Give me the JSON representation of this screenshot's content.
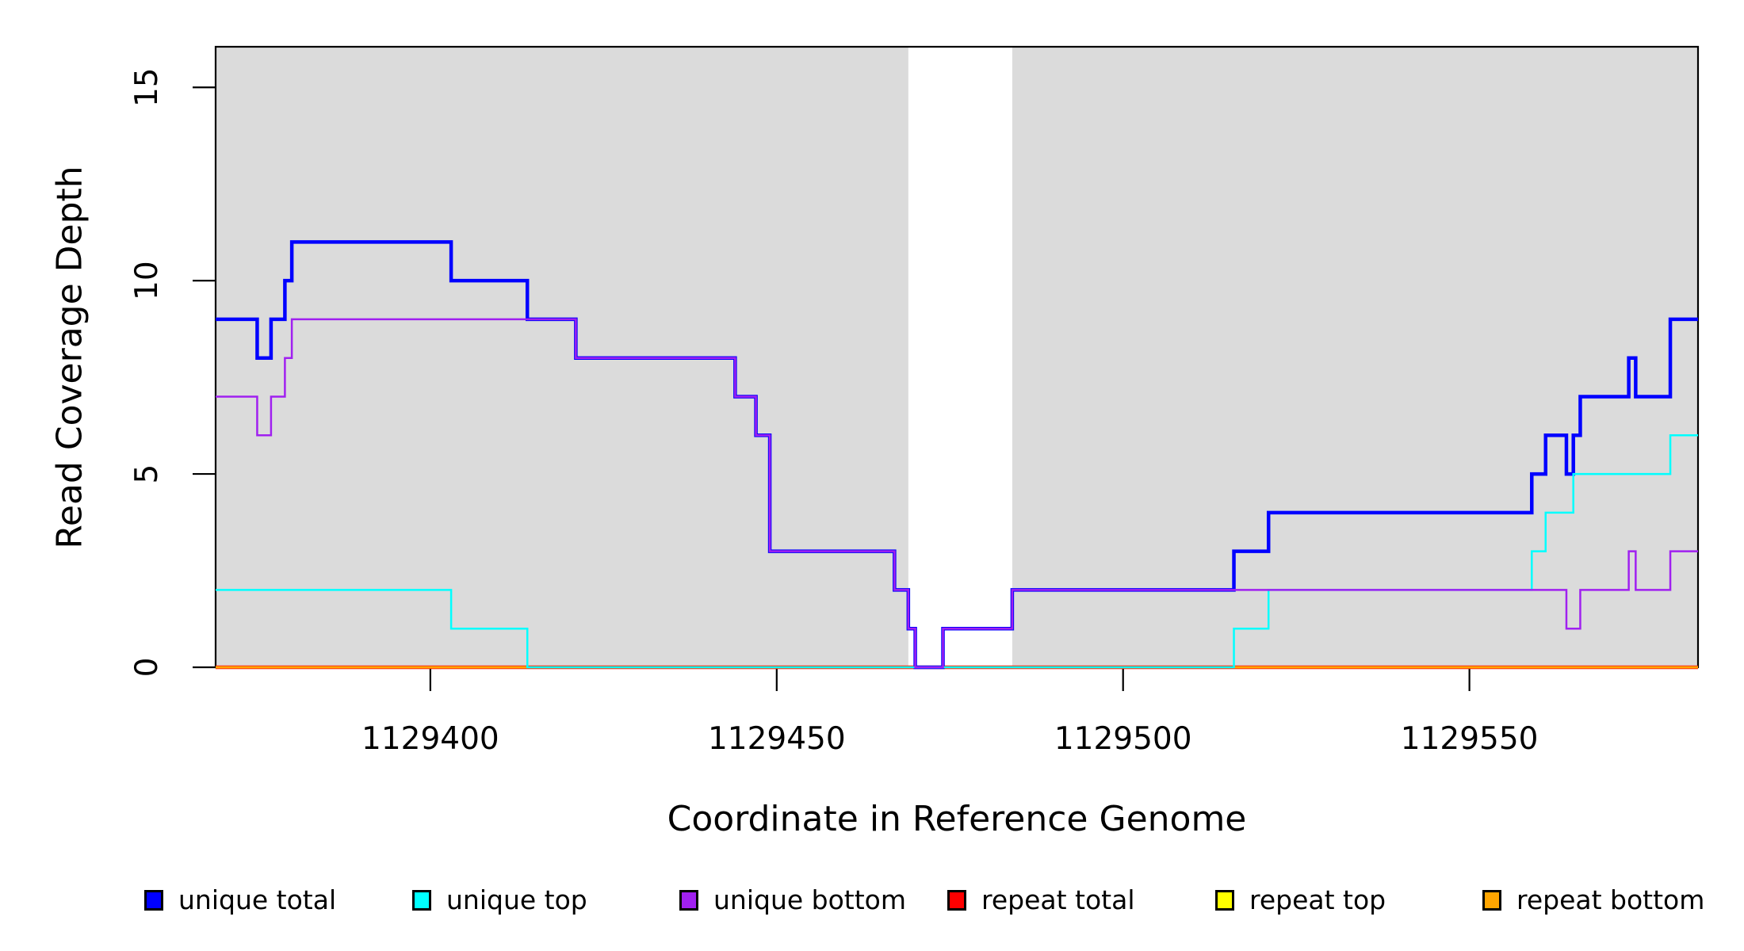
{
  "figure": {
    "background": "#ffffff",
    "panel_background": "#dbdbdb",
    "axis_color": "#000000"
  },
  "chart_data": {
    "type": "line",
    "subtype": "step-hv",
    "title": "",
    "xlabel": "Coordinate in Reference Genome",
    "ylabel": "Read Coverage Depth",
    "xlim": [
      1129369,
      1129583
    ],
    "ylim": [
      0,
      16.05
    ],
    "x_ticks": [
      1129400,
      1129450,
      1129500,
      1129550
    ],
    "y_ticks": [
      0,
      5,
      10,
      15
    ],
    "grid": false,
    "legend_position": "bottom",
    "masked_white_band": {
      "x1": 1129469,
      "x2": 1129484
    },
    "series": [
      {
        "name": "repeat total",
        "color": "#ff0000",
        "width": 4.5,
        "points": [
          [
            1129369,
            0
          ],
          [
            1129583,
            0
          ]
        ]
      },
      {
        "name": "repeat top",
        "color": "#ffff00",
        "width": 2.5,
        "points": [
          [
            1129369,
            0
          ],
          [
            1129583,
            0
          ]
        ]
      },
      {
        "name": "repeat bottom",
        "color": "#ffa500",
        "width": 3,
        "points": [
          [
            1129369,
            0
          ],
          [
            1129583,
            0
          ]
        ]
      },
      {
        "name": "unique total",
        "color": "#0000ff",
        "width": 4.5,
        "points": [
          [
            1129369,
            9
          ],
          [
            1129375,
            8
          ],
          [
            1129377,
            9
          ],
          [
            1129379,
            10
          ],
          [
            1129380,
            11
          ],
          [
            1129403,
            10
          ],
          [
            1129414,
            9
          ],
          [
            1129421,
            8
          ],
          [
            1129444,
            7
          ],
          [
            1129447,
            6
          ],
          [
            1129449,
            3
          ],
          [
            1129467,
            2
          ],
          [
            1129469,
            1
          ],
          [
            1129470,
            0
          ],
          [
            1129474,
            1
          ],
          [
            1129484,
            2
          ],
          [
            1129516,
            3
          ],
          [
            1129521,
            4
          ],
          [
            1129559,
            5
          ],
          [
            1129561,
            6
          ],
          [
            1129564,
            5
          ],
          [
            1129565,
            6
          ],
          [
            1129566,
            7
          ],
          [
            1129573,
            8
          ],
          [
            1129574,
            7
          ],
          [
            1129579,
            9
          ],
          [
            1129583,
            9
          ]
        ]
      },
      {
        "name": "unique top",
        "color": "#00ffff",
        "width": 2.5,
        "points": [
          [
            1129369,
            2
          ],
          [
            1129403,
            1
          ],
          [
            1129414,
            0
          ],
          [
            1129516,
            1
          ],
          [
            1129521,
            2
          ],
          [
            1129559,
            3
          ],
          [
            1129561,
            4
          ],
          [
            1129565,
            5
          ],
          [
            1129579,
            6
          ],
          [
            1129583,
            6
          ]
        ]
      },
      {
        "name": "unique bottom",
        "color": "#a020f0",
        "width": 2.5,
        "points": [
          [
            1129369,
            7
          ],
          [
            1129375,
            6
          ],
          [
            1129377,
            7
          ],
          [
            1129379,
            8
          ],
          [
            1129380,
            9
          ],
          [
            1129421,
            8
          ],
          [
            1129444,
            7
          ],
          [
            1129447,
            6
          ],
          [
            1129449,
            3
          ],
          [
            1129467,
            2
          ],
          [
            1129469,
            1
          ],
          [
            1129470,
            0
          ],
          [
            1129474,
            1
          ],
          [
            1129484,
            2
          ],
          [
            1129564,
            1
          ],
          [
            1129566,
            2
          ],
          [
            1129573,
            3
          ],
          [
            1129574,
            2
          ],
          [
            1129579,
            3
          ],
          [
            1129583,
            3
          ]
        ]
      }
    ]
  },
  "legend": {
    "items": [
      {
        "label": "unique total",
        "color": "#0000ff"
      },
      {
        "label": "unique top",
        "color": "#00ffff"
      },
      {
        "label": "unique bottom",
        "color": "#a020f0"
      },
      {
        "label": "repeat total",
        "color": "#ff0000"
      },
      {
        "label": "repeat top",
        "color": "#ffff00"
      },
      {
        "label": "repeat bottom",
        "color": "#ffa500"
      }
    ]
  }
}
